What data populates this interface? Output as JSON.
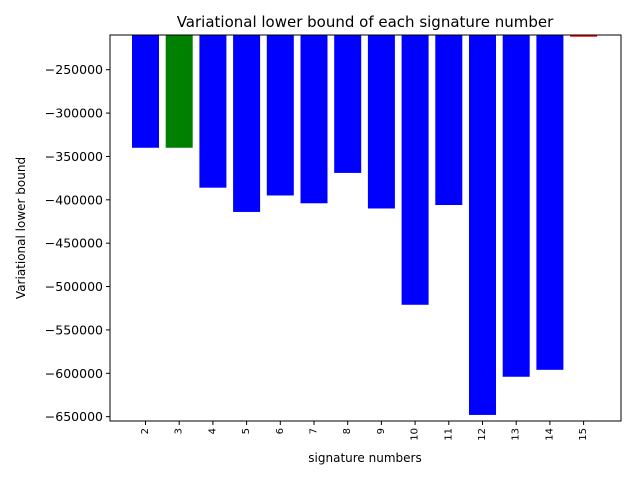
{
  "chart_data": {
    "type": "bar",
    "title": "Variational lower bound of each signature number",
    "xlabel": "signature numbers",
    "ylabel": "Variational lower bound",
    "categories": [
      "2",
      "3",
      "4",
      "5",
      "6",
      "7",
      "8",
      "9",
      "10",
      "11",
      "12",
      "13",
      "14",
      "15"
    ],
    "values": [
      -340000,
      -340000,
      -386000,
      -414000,
      -395000,
      -404000,
      -369000,
      -410000,
      -521000,
      -406000,
      -648000,
      -604000,
      -596000,
      -212000
    ],
    "bar_colors": [
      "#0000ff",
      "#008000",
      "#0000ff",
      "#0000ff",
      "#0000ff",
      "#0000ff",
      "#0000ff",
      "#0000ff",
      "#0000ff",
      "#0000ff",
      "#0000ff",
      "#0000ff",
      "#0000ff",
      "#ff0000"
    ],
    "ylim": [
      -655000,
      -210000
    ],
    "yticks": [
      -250000,
      -300000,
      -350000,
      -400000,
      -450000,
      -500000,
      -550000,
      -600000,
      -650000
    ],
    "ytick_labels": [
      "−250000",
      "−300000",
      "−350000",
      "−400000",
      "−450000",
      "−500000",
      "−550000",
      "−600000",
      "−650000"
    ],
    "grid": false,
    "legend": "none"
  }
}
